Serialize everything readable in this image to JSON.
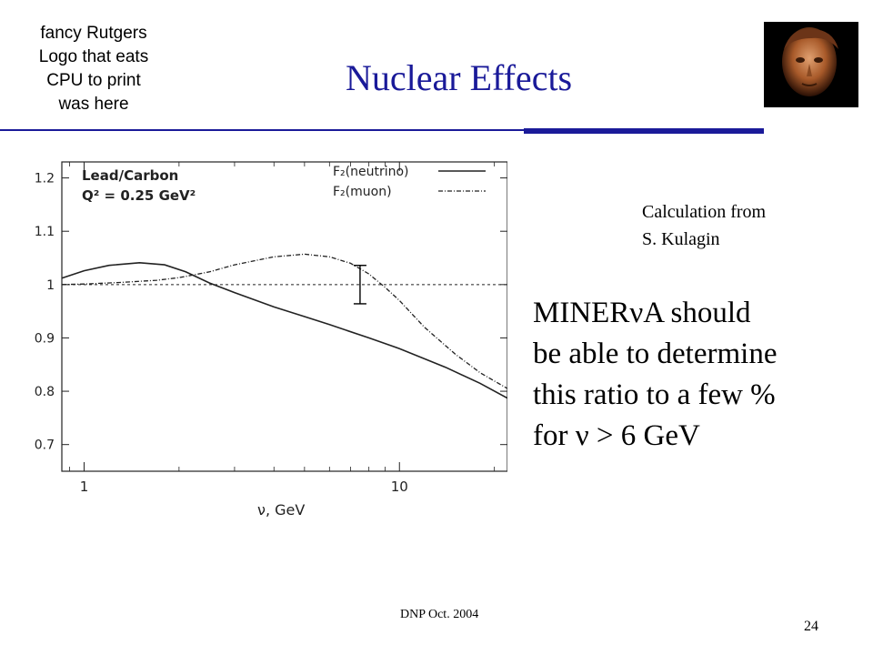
{
  "logo": {
    "lines": [
      "fancy Rutgers",
      "Logo that eats",
      "CPU to print",
      "was here"
    ]
  },
  "slide": {
    "title": "Nuclear Effects",
    "credit_lines": [
      "Calculation from",
      "S. Kulagin"
    ],
    "claim_lines": [
      "MINERνA should",
      "be able to determine",
      "this ratio to a few %",
      "for ν > 6 GeV"
    ],
    "footer": "DNP Oct. 2004",
    "page_number": "24"
  },
  "colors": {
    "title": "#1a1a99",
    "rule": "#1a1a99",
    "plot_ink": "#222222"
  },
  "chart_data": {
    "type": "line",
    "title": "",
    "plot_annotation": [
      "Lead/Carbon",
      "Q² = 0.25 GeV²"
    ],
    "xlabel": "ν, GeV",
    "ylabel": "",
    "xscale": "log",
    "xlim": [
      0.85,
      22
    ],
    "ylim": [
      0.65,
      1.23
    ],
    "xticks": [
      1,
      10
    ],
    "xtick_labels": [
      "1",
      "10"
    ],
    "yticks": [
      0.7,
      0.8,
      0.9,
      1.0,
      1.1,
      1.2
    ],
    "ytick_labels": [
      "0.7",
      "0.8",
      "0.9",
      "1",
      "1.1",
      "1.2"
    ],
    "legend_position": "top-right",
    "reference_line": 1.0,
    "series": [
      {
        "name": "F₂(neutrino)",
        "style": "solid",
        "x": [
          0.85,
          1.0,
          1.2,
          1.5,
          1.8,
          2.1,
          2.5,
          3.0,
          4.0,
          5.0,
          6.0,
          8.0,
          10.0,
          14.0,
          18.0,
          22.0
        ],
        "y": [
          1.012,
          1.026,
          1.036,
          1.041,
          1.037,
          1.024,
          1.003,
          0.985,
          0.958,
          0.94,
          0.925,
          0.9,
          0.88,
          0.845,
          0.815,
          0.787
        ]
      },
      {
        "name": "F₂(muon)",
        "style": "dashed",
        "x": [
          0.85,
          1.0,
          1.3,
          1.7,
          2.0,
          2.5,
          3.0,
          4.0,
          5.0,
          6.0,
          7.0,
          8.0,
          9.0,
          10.0,
          12.0,
          15.0,
          18.0,
          22.0
        ],
        "y": [
          1.0,
          1.001,
          1.004,
          1.008,
          1.013,
          1.024,
          1.037,
          1.052,
          1.057,
          1.052,
          1.04,
          1.02,
          0.995,
          0.97,
          0.92,
          0.87,
          0.835,
          0.805
        ]
      }
    ],
    "error_bar": {
      "x": 7.5,
      "y": 1.0,
      "ylow": 0.964,
      "yhigh": 1.036
    }
  }
}
